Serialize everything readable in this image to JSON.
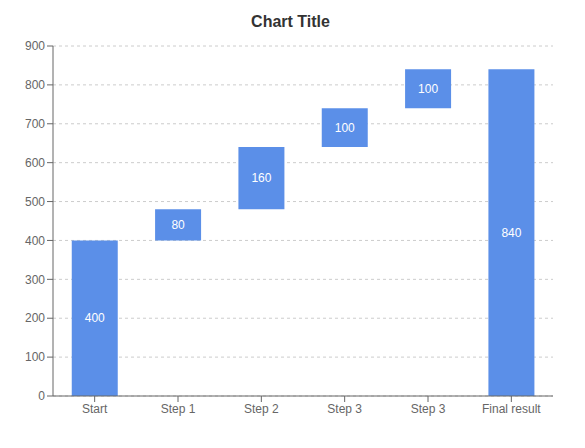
{
  "chart_data": {
    "type": "waterfall",
    "title": "Chart Title",
    "categories": [
      "Start",
      "Step 1",
      "Step 2",
      "Step 3",
      "Step 3",
      "Final result"
    ],
    "values": [
      400,
      80,
      160,
      100,
      100,
      840
    ],
    "bottoms": [
      0,
      400,
      480,
      640,
      740,
      0
    ],
    "color": "#5B8FE8",
    "ylim": [
      0,
      900
    ],
    "yticks": [
      0,
      100,
      200,
      300,
      400,
      500,
      600,
      700,
      800,
      900
    ],
    "grid": true,
    "data_labels": true
  }
}
